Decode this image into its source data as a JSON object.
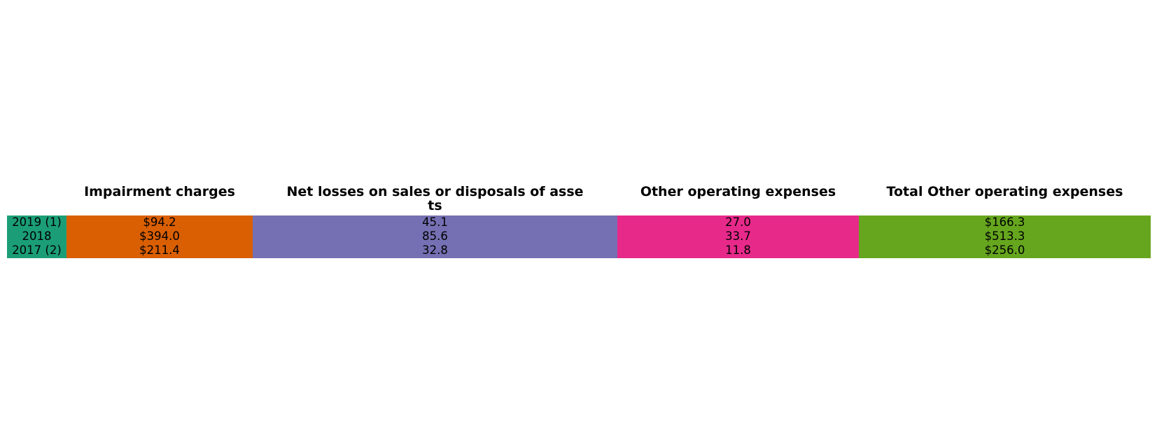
{
  "chart_data": {
    "type": "table",
    "columns": [
      {
        "key": "year",
        "label": "",
        "color": "#1b9e77"
      },
      {
        "key": "impairment",
        "label": "Impairment charges",
        "color": "#d95f02"
      },
      {
        "key": "net_losses",
        "label_line1": "Net losses on sales or disposals of asse",
        "label_line2": "ts",
        "color": "#7570b3"
      },
      {
        "key": "other",
        "label": "Other operating expenses",
        "color": "#e7298a"
      },
      {
        "key": "total",
        "label": "Total Other operating expenses",
        "color": "#66a61e"
      }
    ],
    "rows": [
      {
        "year": "2019 (1)",
        "impairment": "$94.2",
        "net_losses": "45.1",
        "other": "27.0",
        "total": "$166.3"
      },
      {
        "year": "2018",
        "impairment": "$394.0",
        "net_losses": "85.6",
        "other": "33.7",
        "total": "$513.3"
      },
      {
        "year": "2017 (2)",
        "impairment": "$211.4",
        "net_losses": "32.8",
        "other": "11.8",
        "total": "$256.0"
      }
    ]
  }
}
